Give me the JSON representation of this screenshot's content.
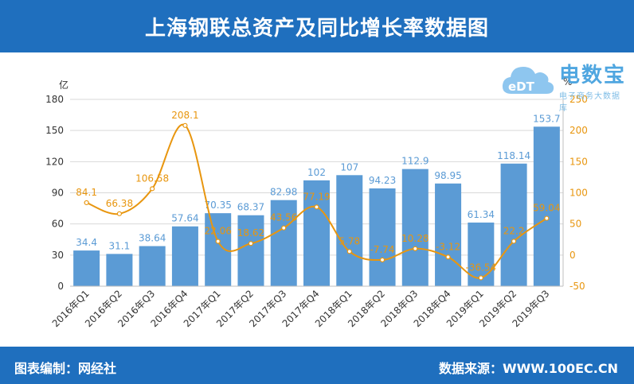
{
  "header": {
    "title": "上海钢联总资产及同比增长率数据图"
  },
  "footer": {
    "left": "图表编制：网经社",
    "right": "数据来源：WWW.100EC.CN"
  },
  "logo": {
    "brand": "电数宝",
    "sub": "电子商务大数据库",
    "mark": "eDT"
  },
  "colors": {
    "bar": "#5b9bd5",
    "line": "#e8960f",
    "header": "#1f6fbe"
  },
  "chart_data": {
    "type": "bar",
    "categories": [
      "2016年Q1",
      "2016年Q2",
      "2016年Q3",
      "2016年Q4",
      "2017年Q1",
      "2017年Q2",
      "2017年Q3",
      "2017年Q4",
      "2018年Q1",
      "2018年Q2",
      "2018年Q3",
      "2018年Q4",
      "2019年Q1",
      "2019年Q2",
      "2019年Q3"
    ],
    "series": [
      {
        "type": "bar",
        "axis": "left",
        "values": [
          34.4,
          31.1,
          38.64,
          57.64,
          70.35,
          68.37,
          82.98,
          102,
          107,
          94.23,
          112.9,
          98.95,
          61.34,
          118.14,
          153.7
        ],
        "labels": [
          "34.4",
          "31.1",
          "38.64",
          "57.64",
          "70.35",
          "68.37",
          "82.98",
          "102",
          "107",
          "94.23",
          "112.9",
          "98.95",
          "61.34",
          "118.14",
          "153.7"
        ]
      },
      {
        "type": "line",
        "axis": "right",
        "values": [
          84.1,
          66.38,
          106.58,
          208.1,
          22.06,
          18.62,
          43.56,
          77.19,
          5.78,
          -7.74,
          10.28,
          -3.12,
          -36.54,
          22.2,
          59.04
        ],
        "labels": [
          "84.1",
          "66.38",
          "106.58",
          "208.1",
          "22.06",
          "18.62",
          "43.56",
          "77.19",
          "5.78",
          "-7.74",
          "10.28",
          "-3.12",
          "-36.54",
          "22.2",
          "59.04"
        ]
      }
    ],
    "ylabel_left": "亿",
    "ylabel_right": "%",
    "ylim_left": [
      0,
      180
    ],
    "yticks_left": [
      0,
      30,
      60,
      90,
      120,
      150,
      180
    ],
    "ylim_right": [
      -50,
      250
    ],
    "yticks_right": [
      -50,
      0,
      50,
      100,
      150,
      200,
      250
    ],
    "grid": true,
    "legend": "none"
  }
}
